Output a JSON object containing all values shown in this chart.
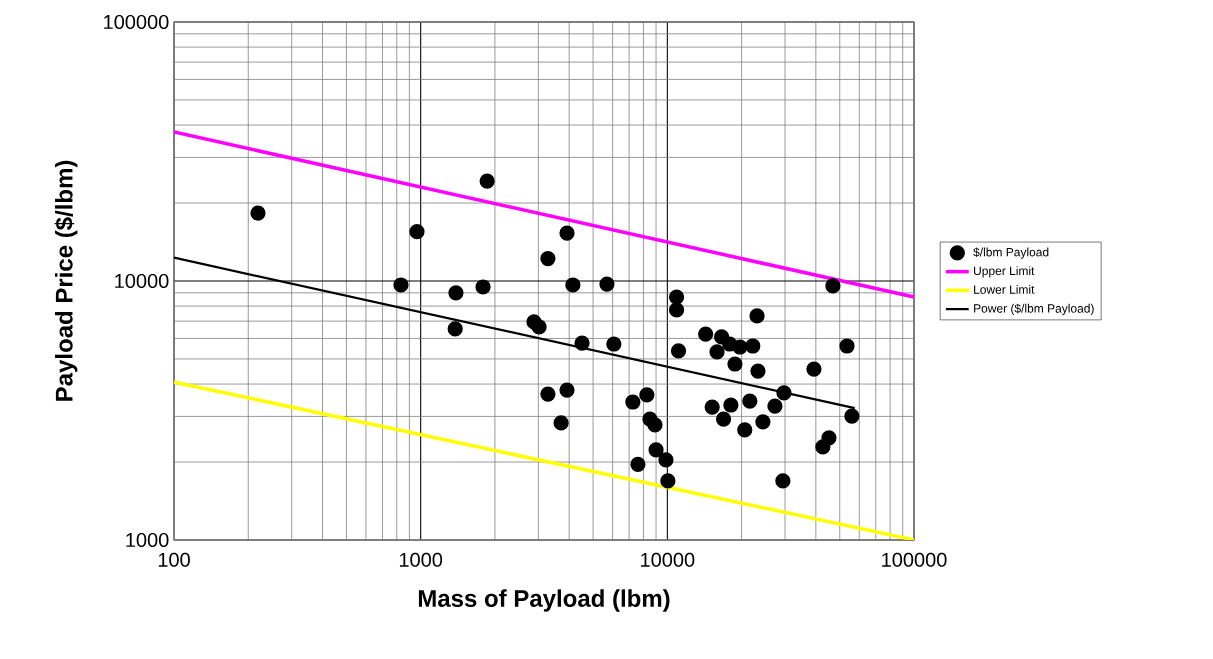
{
  "chart_data": {
    "type": "scatter",
    "xlabel": "Mass of Payload (lbm)",
    "ylabel": "Payload Price ($/lbm)",
    "log": "xy",
    "grid": true,
    "legend": "right",
    "xlim": [
      100,
      100000
    ],
    "ylim": [
      1000,
      100000
    ],
    "xticks": [
      100,
      1000,
      10000,
      100000
    ],
    "yticks": [
      1000,
      10000,
      100000
    ],
    "series": [
      {
        "name": "$/lbm Payload",
        "marker": "circle",
        "color": "#000000",
        "x": [
          219,
          832,
          966,
          1390,
          1380,
          1790,
          1860,
          2880,
          3020,
          3280,
          3920,
          4140,
          5690,
          3280,
          3920,
          3710,
          4510,
          6070,
          10900,
          10900,
          11100,
          7250,
          8260,
          8500,
          8910,
          9000,
          9870,
          7600,
          10050,
          14300,
          16600,
          15900,
          17900,
          19700,
          22200,
          18800,
          23100,
          23300,
          15200,
          18100,
          16900,
          21600,
          20600,
          24400,
          27300,
          29700,
          29400,
          39300,
          46900,
          53500,
          56000,
          45200,
          42700
        ],
        "values": [
          18300,
          9650,
          15500,
          9000,
          6530,
          9480,
          24300,
          6950,
          6650,
          12200,
          15300,
          9650,
          9730,
          3660,
          3790,
          2830,
          5760,
          5710,
          8670,
          7730,
          5370,
          3410,
          3630,
          2930,
          2780,
          2230,
          2040,
          1960,
          1690,
          6240,
          6080,
          5320,
          5710,
          5560,
          5610,
          4780,
          7330,
          4490,
          3260,
          3320,
          2930,
          3440,
          2660,
          2860,
          3290,
          3700,
          1690,
          4570,
          9570,
          5610,
          3010,
          2480,
          2290
        ]
      },
      {
        "name": "Upper Limit",
        "type": "line",
        "marker": "none",
        "color": "#ff00ff",
        "x": [
          100,
          100000
        ],
        "values": [
          37600,
          8670
        ]
      },
      {
        "name": "Lower Limit",
        "type": "line",
        "marker": "none",
        "color": "#ffff00",
        "x": [
          100,
          100000
        ],
        "values": [
          4070,
          1000
        ]
      },
      {
        "name": "Power ($/lbm Payload)",
        "type": "line",
        "marker": "none",
        "color": "#000000",
        "x": [
          100,
          57500
        ],
        "values": [
          12300,
          3230
        ]
      }
    ]
  }
}
